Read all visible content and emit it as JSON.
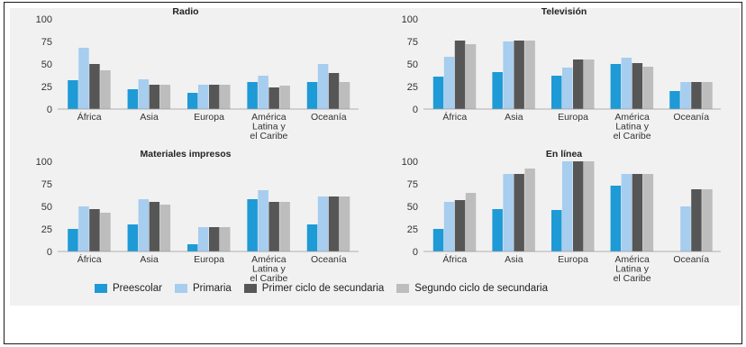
{
  "colors": {
    "series": [
      "#1e9ad6",
      "#a7cdef",
      "#565656",
      "#bdbdbd"
    ],
    "axis_text": "#333333",
    "title_text": "#222222",
    "panel_bg": "#f1f1f1"
  },
  "legend": [
    {
      "label": "Preescolar"
    },
    {
      "label": "Primaria"
    },
    {
      "label": "Primer ciclo de secundaria"
    },
    {
      "label": "Segundo ciclo de secundaria"
    }
  ],
  "chart_data": [
    {
      "type": "bar",
      "title": "Radio",
      "categories": [
        [
          "África"
        ],
        [
          "Asia"
        ],
        [
          "Europa"
        ],
        [
          "América",
          "Latina y",
          "el Caribe"
        ],
        [
          "Oceanía"
        ]
      ],
      "yticks": [
        "0",
        "25",
        "50",
        "75",
        "100"
      ],
      "ylim": [
        0,
        100
      ],
      "series": [
        {
          "name": "Preescolar",
          "values": [
            32,
            22,
            18,
            30,
            30
          ]
        },
        {
          "name": "Primaria",
          "values": [
            68,
            33,
            27,
            37,
            50
          ]
        },
        {
          "name": "Primer ciclo de secundaria",
          "values": [
            50,
            27,
            27,
            24,
            40
          ]
        },
        {
          "name": "Segundo ciclo de secundaria",
          "values": [
            43,
            27,
            27,
            26,
            30
          ]
        }
      ]
    },
    {
      "type": "bar",
      "title": "Televisión",
      "categories": [
        [
          "África"
        ],
        [
          "Asia"
        ],
        [
          "Europa"
        ],
        [
          "América",
          "Latina y",
          "el Caribe"
        ],
        [
          "Oceanía"
        ]
      ],
      "yticks": [
        "0",
        "25",
        "50",
        "75",
        "100"
      ],
      "ylim": [
        0,
        100
      ],
      "series": [
        {
          "name": "Preescolar",
          "values": [
            36,
            41,
            37,
            50,
            20
          ]
        },
        {
          "name": "Primaria",
          "values": [
            58,
            75,
            46,
            57,
            30
          ]
        },
        {
          "name": "Primer ciclo de secundaria",
          "values": [
            76,
            76,
            55,
            51,
            30
          ]
        },
        {
          "name": "Segundo ciclo de secundaria",
          "values": [
            72,
            76,
            55,
            47,
            30
          ]
        }
      ]
    },
    {
      "type": "bar",
      "title": "Materiales impresos",
      "categories": [
        [
          "África"
        ],
        [
          "Asia"
        ],
        [
          "Europa"
        ],
        [
          "América",
          "Latina y",
          "el Caribe"
        ],
        [
          "Oceanía"
        ]
      ],
      "yticks": [
        "0",
        "25",
        "50",
        "75",
        "100"
      ],
      "ylim": [
        0,
        100
      ],
      "series": [
        {
          "name": "Preescolar",
          "values": [
            25,
            30,
            8,
            58,
            30
          ]
        },
        {
          "name": "Primaria",
          "values": [
            50,
            58,
            27,
            68,
            61
          ]
        },
        {
          "name": "Primer ciclo de secundaria",
          "values": [
            47,
            55,
            27,
            55,
            61
          ]
        },
        {
          "name": "Segundo ciclo de secundaria",
          "values": [
            43,
            52,
            27,
            55,
            61
          ]
        }
      ]
    },
    {
      "type": "bar",
      "title": "En línea",
      "categories": [
        [
          "África"
        ],
        [
          "Asia"
        ],
        [
          "Europa"
        ],
        [
          "América",
          "Latina y",
          "el Caribe"
        ],
        [
          "Oceanía"
        ]
      ],
      "yticks": [
        "0",
        "25",
        "50",
        "75",
        "100"
      ],
      "ylim": [
        0,
        100
      ],
      "series": [
        {
          "name": "Preescolar",
          "values": [
            25,
            47,
            46,
            73,
            0
          ]
        },
        {
          "name": "Primaria",
          "values": [
            55,
            86,
            100,
            86,
            50
          ]
        },
        {
          "name": "Primer ciclo de secundaria",
          "values": [
            57,
            86,
            100,
            86,
            69
          ]
        },
        {
          "name": "Segundo ciclo de secundaria",
          "values": [
            65,
            92,
            100,
            86,
            69
          ]
        }
      ]
    }
  ]
}
